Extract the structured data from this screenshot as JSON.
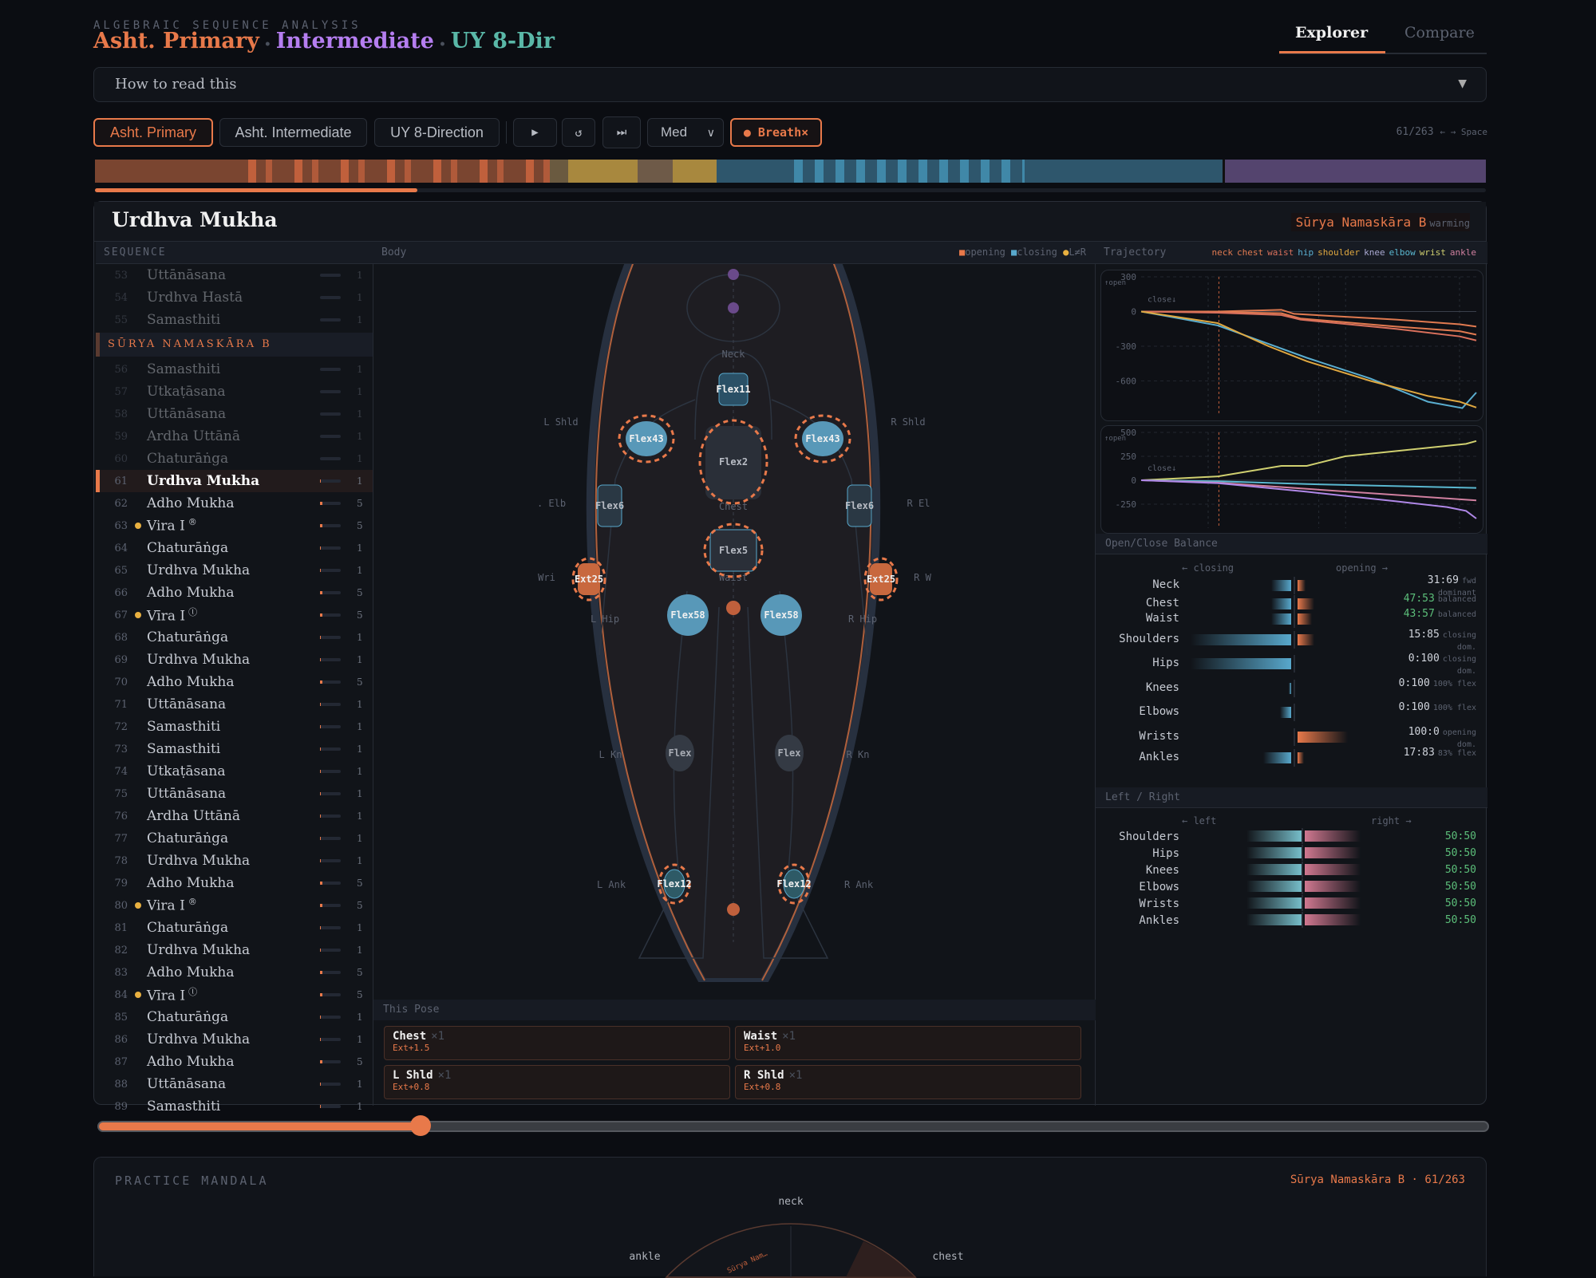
{
  "header": {
    "kicker": "ALGEBRAIC SEQUENCE ANALYSIS",
    "title_parts": [
      {
        "text": "Asht. Primary",
        "color": "#e8794a"
      },
      {
        "text": "Intermediate",
        "color": "#b57ef0"
      },
      {
        "text": "UY 8-Dir",
        "color": "#5ab8a8"
      }
    ],
    "separator": "•",
    "tabs": [
      {
        "label": "Explorer",
        "active": true
      },
      {
        "label": "Compare",
        "active": false
      }
    ]
  },
  "howto": {
    "label": "How to read this",
    "caret": "▼"
  },
  "controls": {
    "sequences": [
      {
        "label": "Asht. Primary",
        "active": true
      },
      {
        "label": "Asht. Intermediate",
        "active": false
      },
      {
        "label": "UY 8-Direction",
        "active": false
      }
    ],
    "play_icon": "▶",
    "reset_icon": "↺",
    "skip_icon": "⏭",
    "speed": "Med",
    "breath_label": "● Breath×",
    "current": 61,
    "total": 263,
    "counter": "61/263",
    "hint": "← → Space"
  },
  "colors": {
    "accent": "#e8794a",
    "opening": "#e8794a",
    "closing": "#58a8cc",
    "lr": "#e8b040",
    "balanced": "#5cbf7a"
  },
  "pose": {
    "name": "Urdhva Mukha",
    "group": "Sūrya Namaskāra B",
    "phase": "warming"
  },
  "sequence": {
    "header": "SEQUENCE",
    "group_header": "SŪRYA NAMASKĀRA B",
    "before": [
      {
        "num": "53",
        "name": "Uttānāsana",
        "count": "1",
        "fill": 0
      },
      {
        "num": "54",
        "name": "Urdhva Hastā",
        "count": "1",
        "fill": 0
      },
      {
        "num": "55",
        "name": "Samasthiti",
        "count": "1",
        "fill": 0
      }
    ],
    "items": [
      {
        "num": "56",
        "name": "Samasthiti",
        "count": "1",
        "fill": 0,
        "dim": true
      },
      {
        "num": "57",
        "name": "Utkaṭāsana",
        "count": "1",
        "fill": 0,
        "dim": true
      },
      {
        "num": "58",
        "name": "Uttānāsana",
        "count": "1",
        "fill": 0,
        "dim": true
      },
      {
        "num": "59",
        "name": "Ardha Uttānā",
        "count": "1",
        "fill": 0,
        "dim": true
      },
      {
        "num": "60",
        "name": "Chaturāṅga",
        "count": "1",
        "fill": 0,
        "dim": true
      },
      {
        "num": "61",
        "name": "Urdhva Mukha",
        "count": "1",
        "fill": 0.05,
        "current": true
      },
      {
        "num": "62",
        "name": "Adho Mukha",
        "count": "5",
        "fill": 0.12
      },
      {
        "num": "63",
        "name": "Vira I",
        "suffix": "®",
        "count": "5",
        "fill": 0.12,
        "dot": true
      },
      {
        "num": "64",
        "name": "Chaturāṅga",
        "count": "1",
        "fill": 0.05
      },
      {
        "num": "65",
        "name": "Urdhva Mukha",
        "count": "1",
        "fill": 0.05
      },
      {
        "num": "66",
        "name": "Adho Mukha",
        "count": "5",
        "fill": 0.12
      },
      {
        "num": "67",
        "name": "Vīra I",
        "suffix": "ⓛ",
        "count": "5",
        "fill": 0.12,
        "dot": true
      },
      {
        "num": "68",
        "name": "Chaturāṅga",
        "count": "1",
        "fill": 0.05
      },
      {
        "num": "69",
        "name": "Urdhva Mukha",
        "count": "1",
        "fill": 0.05
      },
      {
        "num": "70",
        "name": "Adho Mukha",
        "count": "5",
        "fill": 0.12
      },
      {
        "num": "71",
        "name": "Uttānāsana",
        "count": "1",
        "fill": 0.03
      },
      {
        "num": "72",
        "name": "Samasthiti",
        "count": "1",
        "fill": 0.03
      },
      {
        "num": "73",
        "name": "Samasthiti",
        "count": "1",
        "fill": 0.03
      },
      {
        "num": "74",
        "name": "Utkaṭāsana",
        "count": "1",
        "fill": 0.03
      },
      {
        "num": "75",
        "name": "Uttānāsana",
        "count": "1",
        "fill": 0.03
      },
      {
        "num": "76",
        "name": "Ardha Uttānā",
        "count": "1",
        "fill": 0.03
      },
      {
        "num": "77",
        "name": "Chaturāṅga",
        "count": "1",
        "fill": 0.05
      },
      {
        "num": "78",
        "name": "Urdhva Mukha",
        "count": "1",
        "fill": 0.05
      },
      {
        "num": "79",
        "name": "Adho Mukha",
        "count": "5",
        "fill": 0.12
      },
      {
        "num": "80",
        "name": "Vira I",
        "suffix": "®",
        "count": "5",
        "fill": 0.12,
        "dot": true
      },
      {
        "num": "81",
        "name": "Chaturāṅga",
        "count": "1",
        "fill": 0.05
      },
      {
        "num": "82",
        "name": "Urdhva Mukha",
        "count": "1",
        "fill": 0.05
      },
      {
        "num": "83",
        "name": "Adho Mukha",
        "count": "5",
        "fill": 0.12
      },
      {
        "num": "84",
        "name": "Vīra I",
        "suffix": "ⓛ",
        "count": "5",
        "fill": 0.12,
        "dot": true
      },
      {
        "num": "85",
        "name": "Chaturāṅga",
        "count": "1",
        "fill": 0.05
      },
      {
        "num": "86",
        "name": "Urdhva Mukha",
        "count": "1",
        "fill": 0.05
      },
      {
        "num": "87",
        "name": "Adho Mukha",
        "count": "5",
        "fill": 0.12
      },
      {
        "num": "88",
        "name": "Uttānāsana",
        "count": "1",
        "fill": 0.03
      },
      {
        "num": "89",
        "name": "Samasthiti",
        "count": "1",
        "fill": 0.03
      }
    ]
  },
  "body": {
    "header": "Body",
    "legend": {
      "opening": "opening",
      "closing": "closing",
      "lr": "L≠R"
    },
    "labels": {
      "neck": "Neck",
      "chest": "Chest",
      "waist": "Waist",
      "l_shld": "L Shld",
      "r_shld": "R Shld",
      "l_elb": ". Elb",
      "r_elb": "R El",
      "l_wri": "Wri",
      "r_wri": "R W",
      "l_hip": "L Hip",
      "r_hip": "R Hip",
      "l_kn": "L Kn",
      "r_kn": "R Kn",
      "l_ank": "L Ank",
      "r_ank": "R Ank"
    },
    "nodes": {
      "neck": "Flex11",
      "chest": "Flex2",
      "waist": "Flex5",
      "l_shld": "Flex43",
      "r_shld": "Flex43",
      "l_elb": "Flex6",
      "r_elb": "Flex6",
      "l_wri": "Ext25",
      "r_wri": "Ext25",
      "l_hip": "Flex58",
      "r_hip": "Flex58",
      "l_kn": "Flex",
      "r_kn": "Flex",
      "l_ank": "Flex12",
      "r_ank": "Flex12"
    }
  },
  "this_pose": {
    "header": "This Pose",
    "cards": [
      {
        "joint": "Chest",
        "mult": "×1",
        "value": "Ext+1.5"
      },
      {
        "joint": "Waist",
        "mult": "×1",
        "value": "Ext+1.0"
      },
      {
        "joint": "L Shld",
        "mult": "×1",
        "value": "Ext+0.8"
      },
      {
        "joint": "R Shld",
        "mult": "×1",
        "value": "Ext+0.8"
      }
    ]
  },
  "trajectory": {
    "header": "Trajectory",
    "legend": [
      {
        "name": "neck",
        "color": "#e07a50"
      },
      {
        "name": "chest",
        "color": "#e07a50"
      },
      {
        "name": "waist",
        "color": "#d9705c"
      },
      {
        "name": "hip",
        "color": "#5aaed0"
      },
      {
        "name": "shoulder",
        "color": "#e0a840"
      },
      {
        "name": "knee",
        "color": "#a8a8d0"
      },
      {
        "name": "elbow",
        "color": "#5ab8d0"
      },
      {
        "name": "wrist",
        "color": "#d0d070"
      },
      {
        "name": "ankle",
        "color": "#d080a0"
      }
    ]
  },
  "chart_data": [
    {
      "type": "line",
      "ylim": [
        -900,
        300
      ],
      "xlim": [
        0,
        263
      ],
      "yticks": [
        "300",
        "0",
        "-300",
        "-600"
      ],
      "y_ticks_values": [
        300,
        0,
        -300,
        -600
      ],
      "annotations": [
        "↑open",
        "close↓"
      ],
      "marker_x": 61,
      "grid": true,
      "series": [
        {
          "name": "neck",
          "color": "#e07a50",
          "points": [
            [
              0,
              0
            ],
            [
              60,
              0
            ],
            [
              110,
              15
            ],
            [
              120,
              -20
            ],
            [
              200,
              -70
            ],
            [
              250,
              -110
            ],
            [
              263,
              -130
            ]
          ]
        },
        {
          "name": "chest",
          "color": "#e07a50",
          "points": [
            [
              0,
              0
            ],
            [
              60,
              -5
            ],
            [
              110,
              -15
            ],
            [
              125,
              -60
            ],
            [
              200,
              -130
            ],
            [
              250,
              -170
            ],
            [
              263,
              -200
            ]
          ]
        },
        {
          "name": "waist",
          "color": "#d9705c",
          "points": [
            [
              0,
              0
            ],
            [
              60,
              -10
            ],
            [
              110,
              -30
            ],
            [
              125,
              -70
            ],
            [
              200,
              -150
            ],
            [
              250,
              -215
            ],
            [
              263,
              -250
            ]
          ]
        },
        {
          "name": "hip",
          "color": "#5aaed0",
          "points": [
            [
              0,
              0
            ],
            [
              30,
              -60
            ],
            [
              60,
              -120
            ],
            [
              100,
              -280
            ],
            [
              130,
              -400
            ],
            [
              180,
              -580
            ],
            [
              225,
              -780
            ],
            [
              252,
              -835
            ],
            [
              263,
              -700
            ]
          ]
        },
        {
          "name": "shoulder",
          "color": "#e0a840",
          "points": [
            [
              0,
              0
            ],
            [
              30,
              -50
            ],
            [
              60,
              -100
            ],
            [
              100,
              -300
            ],
            [
              130,
              -430
            ],
            [
              180,
              -600
            ],
            [
              225,
              -730
            ],
            [
              250,
              -780
            ],
            [
              263,
              -830
            ]
          ]
        }
      ]
    },
    {
      "type": "line",
      "ylim": [
        -500,
        500
      ],
      "xlim": [
        0,
        263
      ],
      "yticks": [
        "500",
        "250",
        "0",
        "-250"
      ],
      "y_ticks_values": [
        500,
        250,
        0,
        -250
      ],
      "annotations": [
        "↑open",
        "close↓"
      ],
      "marker_x": 61,
      "grid": true,
      "series": [
        {
          "name": "wrist",
          "color": "#d0d070",
          "points": [
            [
              0,
              0
            ],
            [
              60,
              40
            ],
            [
              110,
              150
            ],
            [
              130,
              150
            ],
            [
              160,
              250
            ],
            [
              255,
              380
            ],
            [
              263,
              410
            ]
          ]
        },
        {
          "name": "elbow",
          "color": "#5ab8d0",
          "points": [
            [
              0,
              0
            ],
            [
              60,
              -10
            ],
            [
              130,
              -40
            ],
            [
              263,
              -80
            ]
          ]
        },
        {
          "name": "ankle",
          "color": "#d080a0",
          "points": [
            [
              0,
              0
            ],
            [
              60,
              -25
            ],
            [
              130,
              -90
            ],
            [
              263,
              -210
            ]
          ]
        },
        {
          "name": "knee",
          "color": "#b088e8",
          "points": [
            [
              0,
              0
            ],
            [
              60,
              -30
            ],
            [
              130,
              -120
            ],
            [
              200,
              -220
            ],
            [
              240,
              -280
            ],
            [
              255,
              -320
            ],
            [
              263,
              -400
            ]
          ]
        }
      ]
    }
  ],
  "balance": {
    "header": "Open/Close Balance",
    "closing_label": "← closing",
    "opening_label": "opening →",
    "rows": [
      {
        "joint": "Neck",
        "closing": 0.2,
        "opening": 0.08,
        "ratio": "31:69",
        "note": "fwd dominant"
      },
      {
        "joint": "Chest",
        "closing": 0.2,
        "opening": 0.17,
        "ratio": "47:53",
        "note": "balanced",
        "good": true
      },
      {
        "joint": "Waist",
        "closing": 0.2,
        "opening": 0.14,
        "ratio": "43:57",
        "note": "balanced",
        "good": true
      },
      {
        "joint": "Shoulders",
        "closing": 1.0,
        "opening": 0.17,
        "ratio": "15:85",
        "note": "closing dom."
      },
      {
        "joint": "Hips",
        "closing": 1.0,
        "opening": 0,
        "ratio": "0:100",
        "note": "closing dom."
      },
      {
        "joint": "Knees",
        "closing": 0.02,
        "opening": 0,
        "ratio": "0:100",
        "note": "100% flex"
      },
      {
        "joint": "Elbows",
        "closing": 0.11,
        "opening": 0,
        "ratio": "0:100",
        "note": "100% flex"
      },
      {
        "joint": "Wrists",
        "closing": 0,
        "opening": 0.5,
        "ratio": "100:0",
        "note": "opening dom."
      },
      {
        "joint": "Ankles",
        "closing": 0.28,
        "opening": 0.06,
        "ratio": "17:83",
        "note": "83% flex"
      }
    ]
  },
  "left_right": {
    "header": "Left / Right",
    "left_label": "← left",
    "right_label": "right →",
    "rows": [
      {
        "joint": "Shoulders",
        "ratio": "50:50"
      },
      {
        "joint": "Hips",
        "ratio": "50:50"
      },
      {
        "joint": "Knees",
        "ratio": "50:50"
      },
      {
        "joint": "Elbows",
        "ratio": "50:50"
      },
      {
        "joint": "Wrists",
        "ratio": "50:50"
      },
      {
        "joint": "Ankles",
        "ratio": "50:50"
      }
    ]
  },
  "mandala": {
    "title": "PRACTICE MANDALA",
    "context": "Sūrya Namaskāra B · 61/263",
    "labels": {
      "neck": "neck",
      "chest": "chest",
      "ankle": "ankle"
    },
    "arc_label": "Sūrya Nam…"
  }
}
